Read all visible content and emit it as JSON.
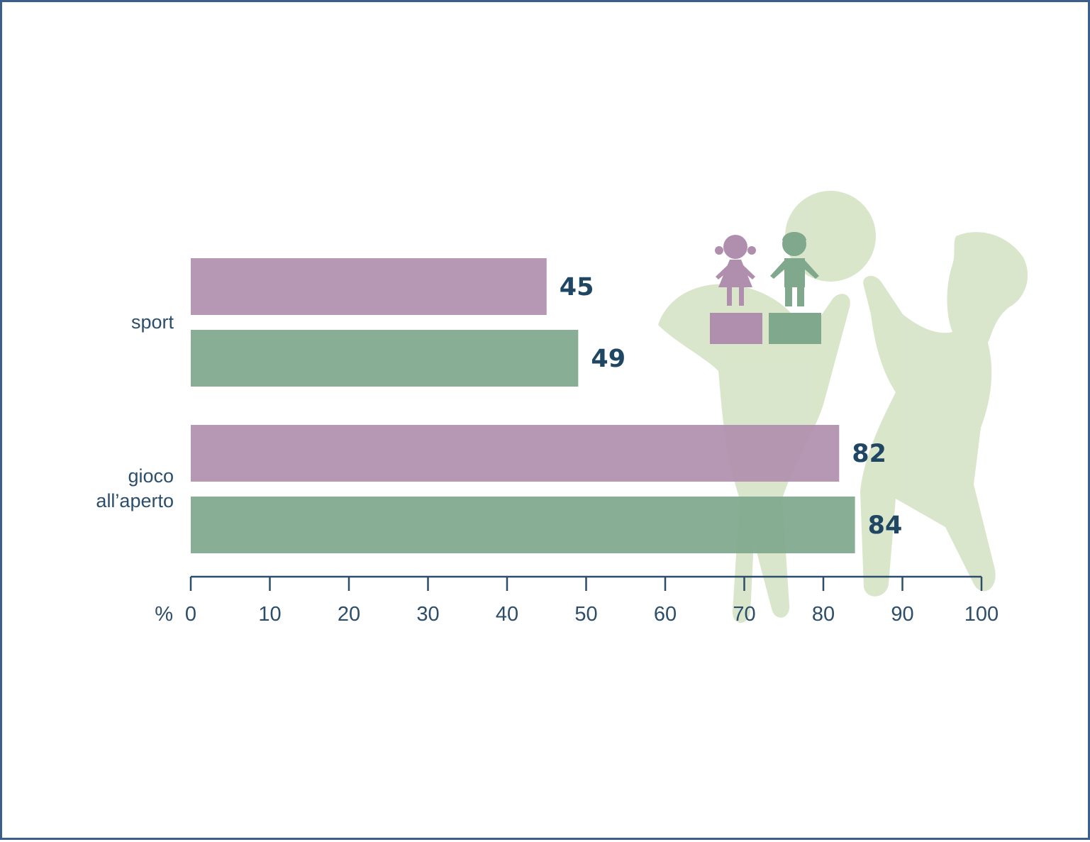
{
  "chart_data": {
    "type": "bar",
    "orientation": "horizontal",
    "categories": [
      "sport",
      "gioco\nall’aperto"
    ],
    "series": [
      {
        "name": "",
        "legend_icon": "girl-icon",
        "color": "#b08fae",
        "values": [
          45,
          82
        ]
      },
      {
        "name": "",
        "legend_icon": "boy-icon",
        "color": "#7fa88d",
        "values": [
          49,
          84
        ]
      }
    ],
    "xlabel": "%",
    "xlim": [
      0,
      100
    ],
    "xticks": [
      0,
      10,
      20,
      30,
      40,
      50,
      60,
      70,
      80,
      90,
      100
    ],
    "legend_position": "top-right",
    "grid": false
  },
  "colors": {
    "frame": "#3b5f8c",
    "axis": "#2c4e6b",
    "label_text": "#2c4e6b",
    "value_text": "#1f4663",
    "background_figure": "#d7e5c8"
  }
}
